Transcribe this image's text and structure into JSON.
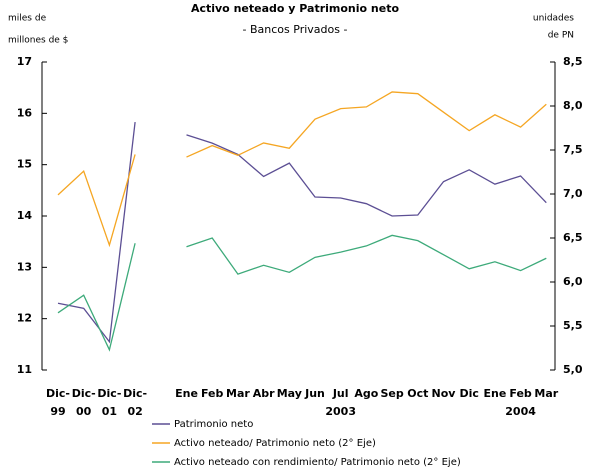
{
  "chart_data": {
    "type": "line",
    "title": "Activo neteado y Patrimonio neto",
    "subtitle": "- Bancos Privados -",
    "y_label_lines": [
      "miles de",
      "millones de $"
    ],
    "y2_label_lines": [
      "unidades",
      "de PN"
    ],
    "categories": [
      "Dic-",
      "Dic-",
      "Dic-",
      "Dic-",
      null,
      "Ene",
      "Feb",
      "Mar",
      "Abr",
      "May",
      "Jun",
      "Jul",
      "Ago",
      "Sep",
      "Oct",
      "Nov",
      "Dic",
      "Ene",
      "Feb",
      "Mar"
    ],
    "category_sublabels": [
      "99",
      "00",
      "01",
      "02",
      null,
      null,
      null,
      null,
      null,
      null,
      null,
      "2003",
      null,
      null,
      null,
      null,
      null,
      null,
      "2004",
      null
    ],
    "ylim": [
      11,
      17
    ],
    "yticks": [
      11,
      12,
      13,
      14,
      15,
      16,
      17
    ],
    "y2lim": [
      5,
      8.5
    ],
    "y2ticks": [
      {
        "value": 5,
        "label": "5,0"
      },
      {
        "value": 5.5,
        "label": "5,5"
      },
      {
        "value": 6,
        "label": "6,0"
      },
      {
        "value": 6.5,
        "label": "6,5"
      },
      {
        "value": 7,
        "label": "7,0"
      },
      {
        "value": 7.5,
        "label": "7,5"
      },
      {
        "value": 8,
        "label": "8,0"
      },
      {
        "value": 8.5,
        "label": "8,5"
      }
    ],
    "series": [
      {
        "name": "Patrimonio neto",
        "color": "#5c4f94",
        "values": [
          12.3,
          12.2,
          11.55,
          15.83,
          null,
          15.58,
          15.42,
          15.2,
          14.77,
          15.03,
          14.37,
          14.35,
          14.24,
          14.0,
          14.02,
          14.67,
          14.9,
          14.62,
          14.78,
          14.26
        ]
      },
      {
        "name": "Activo neteado/ Patrimonio neto (2° Eje)",
        "color": "#f5a623",
        "axis": "y2",
        "values": [
          6.99,
          7.26,
          6.42,
          7.45,
          null,
          7.42,
          7.55,
          7.44,
          7.58,
          7.52,
          7.85,
          7.97,
          7.99,
          8.16,
          8.14,
          7.93,
          7.72,
          7.9,
          7.76,
          8.02
        ]
      },
      {
        "name": "Activo neteado con rendimiento/ Patrimonio neto (2° Eje)",
        "color": "#3daa7a",
        "axis": "y2",
        "values": [
          5.65,
          5.85,
          5.23,
          6.44,
          null,
          6.4,
          6.5,
          6.09,
          6.19,
          6.11,
          6.28,
          6.34,
          6.41,
          6.53,
          6.47,
          6.31,
          6.15,
          6.23,
          6.13,
          6.27
        ]
      }
    ]
  }
}
